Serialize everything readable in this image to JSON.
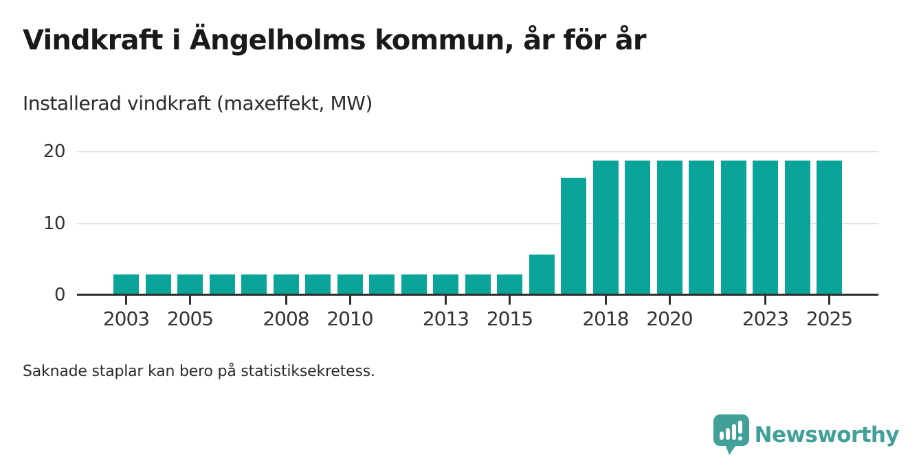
{
  "header": {
    "title": "Vindkraft i Ängelholms kommun, år för år",
    "subtitle": "Installerad vindkraft (maxeffekt, MW)"
  },
  "footer": {
    "note": "Saknade staplar kan bero på statistiksekretess.",
    "brand_name": "Newsworthy"
  },
  "colors": {
    "bar": "#0BA49A",
    "brand": "#41A098",
    "axis": "#2E2E2E",
    "grid": "#E3E3E3",
    "title_text": "#1A1A1A",
    "tick_text": "#333333"
  },
  "chart_data": {
    "type": "bar",
    "title": "Vindkraft i Ängelholms kommun, år för år",
    "subtitle": "Installerad vindkraft (maxeffekt, MW)",
    "xlabel": "",
    "ylabel": "Installerad vindkraft (maxeffekt, MW)",
    "categories": [
      2003,
      2004,
      2005,
      2006,
      2007,
      2008,
      2009,
      2010,
      2011,
      2012,
      2013,
      2014,
      2015,
      2016,
      2017,
      2018,
      2019,
      2020,
      2021,
      2022,
      2023,
      2024,
      2025
    ],
    "values": [
      2.9,
      2.9,
      2.9,
      2.9,
      2.9,
      2.9,
      2.9,
      2.9,
      2.9,
      2.9,
      2.9,
      2.9,
      2.9,
      5.6,
      16.4,
      18.8,
      18.8,
      18.8,
      18.8,
      18.8,
      18.8,
      18.8,
      18.8
    ],
    "ylim": [
      0,
      20
    ],
    "yticks": [
      0,
      10,
      20
    ],
    "xticks": [
      2003,
      2005,
      2008,
      2010,
      2013,
      2015,
      2018,
      2020,
      2023,
      2025
    ],
    "grid": "horizontal",
    "legend": "none",
    "bar_color": "#0BA49A",
    "note": "Saknade staplar kan bero på statistiksekretess."
  }
}
